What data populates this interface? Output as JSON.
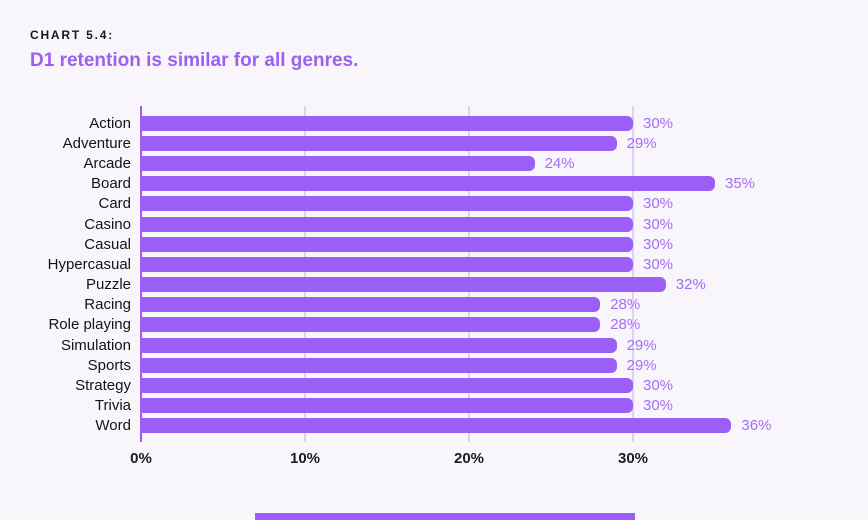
{
  "header": {
    "kicker": "CHART 5.4:",
    "title": "D1 retention is similar for all genres."
  },
  "chart_data": {
    "type": "bar",
    "orientation": "horizontal",
    "title": "D1 retention is similar for all genres.",
    "categories": [
      "Action",
      "Adventure",
      "Arcade",
      "Board",
      "Card",
      "Casino",
      "Casual",
      "Hypercasual",
      "Puzzle",
      "Racing",
      "Role playing",
      "Simulation",
      "Sports",
      "Strategy",
      "Trivia",
      "Word"
    ],
    "values": [
      30,
      29,
      24,
      35,
      30,
      30,
      30,
      30,
      32,
      28,
      28,
      29,
      29,
      30,
      30,
      36
    ],
    "value_labels": [
      "30%",
      "29%",
      "24%",
      "35%",
      "30%",
      "30%",
      "30%",
      "30%",
      "32%",
      "28%",
      "28%",
      "29%",
      "29%",
      "30%",
      "30%",
      "36%"
    ],
    "x_tick_labels": [
      "0%",
      "10%",
      "20%",
      "30%"
    ],
    "x_tick_values": [
      0,
      10,
      20,
      30
    ],
    "xlim": [
      0,
      42
    ],
    "unit": "percent",
    "xlabel": "",
    "ylabel": "",
    "grid": true,
    "legend": false,
    "colors": {
      "bar": "#9b5ef7",
      "value_label": "#a46ef5",
      "gridline": "#ddd2f3",
      "zero_axis": "#9b5ef7",
      "category_label": "#141414",
      "tick_label": "#1c1c1e",
      "background": "#f8f6fb",
      "title": "#9c5ff2",
      "kicker": "#18181b",
      "footer_accent": "#9b5ef7"
    }
  }
}
